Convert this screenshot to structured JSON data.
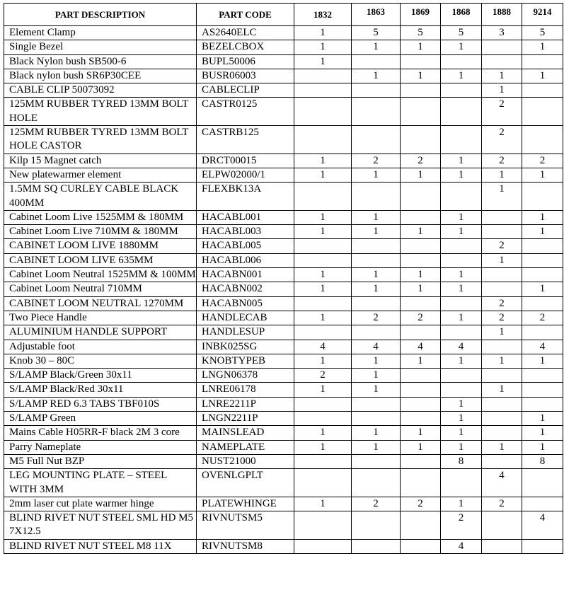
{
  "headers": [
    "PART DESCRIPTION",
    "PART CODE",
    "1832",
    "1863",
    "1869",
    "1868",
    "1888",
    "9214"
  ],
  "rows": [
    {
      "desc": "Element Clamp",
      "code": "AS2640ELC",
      "q": [
        "1",
        "5",
        "5",
        "5",
        "3",
        "5"
      ]
    },
    {
      "desc": "Single Bezel",
      "code": "BEZELCBOX",
      "q": [
        "1",
        "1",
        "1",
        "1",
        "",
        "1"
      ]
    },
    {
      "desc": "Black Nylon bush SB500-6",
      "code": "BUPL50006",
      "q": [
        "1",
        "",
        "",
        "",
        "",
        ""
      ]
    },
    {
      "desc": "Black nylon bush SR6P30CEE",
      "code": "BUSR06003",
      "q": [
        "",
        "1",
        "1",
        "1",
        "1",
        "1"
      ]
    },
    {
      "desc": "CABLE CLIP 50073092",
      "code": "CABLECLIP",
      "q": [
        "",
        "",
        "",
        "",
        "1",
        ""
      ]
    },
    {
      "desc": "125MM RUBBER TYRED 13MM BOLT HOLE",
      "code": "CASTR0125",
      "q": [
        "",
        "",
        "",
        "",
        "2",
        ""
      ]
    },
    {
      "desc": "125MM RUBBER TYRED 13MM BOLT HOLE CASTOR",
      "code": "CASTRB125",
      "q": [
        "",
        "",
        "",
        "",
        "2",
        ""
      ]
    },
    {
      "desc": "Kilp 15 Magnet catch",
      "code": "DRCT00015",
      "q": [
        "1",
        "2",
        "2",
        "1",
        "2",
        "2"
      ]
    },
    {
      "desc": "New platewarmer element",
      "code": "ELPW02000/1",
      "q": [
        "1",
        "1",
        "1",
        "1",
        "1",
        "1"
      ]
    },
    {
      "desc": "1.5MM SQ CURLEY CABLE BLACK 400MM",
      "code": "FLEXBK13A",
      "q": [
        "",
        "",
        "",
        "",
        "1",
        ""
      ]
    },
    {
      "desc": "Cabinet Loom Live 1525MM & 180MM",
      "code": "HACABL001",
      "q": [
        "1",
        "1",
        "",
        "1",
        "",
        "1"
      ]
    },
    {
      "desc": "Cabinet Loom Live 710MM & 180MM",
      "code": "HACABL003",
      "q": [
        "1",
        "1",
        "1",
        "1",
        "",
        "1"
      ]
    },
    {
      "desc": "CABINET LOOM LIVE 1880MM",
      "code": "HACABL005",
      "q": [
        "",
        "",
        "",
        "",
        "2",
        ""
      ]
    },
    {
      "desc": "CABINET LOOM LIVE 635MM",
      "code": "HACABL006",
      "q": [
        "",
        "",
        "",
        "",
        "1",
        ""
      ]
    },
    {
      "desc": "Cabinet Loom Neutral 1525MM & 100MM",
      "code": "HACABN001",
      "q": [
        "1",
        "1",
        "1",
        "1",
        "",
        ""
      ]
    },
    {
      "desc": "Cabinet Loom Neutral 710MM",
      "code": "HACABN002",
      "q": [
        "1",
        "1",
        "1",
        "1",
        "",
        "1"
      ]
    },
    {
      "desc": "CABINET LOOM NEUTRAL 1270MM",
      "code": "HACABN005",
      "q": [
        "",
        "",
        "",
        "",
        "2",
        ""
      ]
    },
    {
      "desc": "Two Piece Handle",
      "code": "HANDLECAB",
      "q": [
        "1",
        "2",
        "2",
        "1",
        "2",
        "2"
      ]
    },
    {
      "desc": "ALUMINIUM HANDLE SUPPORT",
      "code": "HANDLESUP",
      "q": [
        "",
        "",
        "",
        "",
        "1",
        ""
      ]
    },
    {
      "desc": "Adjustable foot",
      "code": "INBK025SG",
      "q": [
        "4",
        "4",
        "4",
        "4",
        "",
        "4"
      ]
    },
    {
      "desc": "Knob 30 – 80C",
      "code": "KNOBTYPEB",
      "q": [
        "1",
        "1",
        "1",
        "1",
        "1",
        "1"
      ]
    },
    {
      "desc": "S/LAMP Black/Green 30x11",
      "code": "LNGN06378",
      "q": [
        "2",
        "1",
        "",
        "",
        "",
        ""
      ]
    },
    {
      "desc": "S/LAMP Black/Red 30x11",
      "code": "LNRE06178",
      "q": [
        "1",
        "1",
        "",
        "",
        "1",
        ""
      ]
    },
    {
      "desc": "S/LAMP RED 6.3 TABS TBF010S",
      "code": "LNRE2211P",
      "q": [
        "",
        "",
        "",
        "1",
        "",
        ""
      ]
    },
    {
      "desc": "S/LAMP Green",
      "code": "LNGN2211P",
      "q": [
        "",
        "",
        "",
        "1",
        "",
        "1"
      ]
    },
    {
      "desc": "Mains Cable H05RR-F black 2M 3 core",
      "code": "MAINSLEAD",
      "q": [
        "1",
        "1",
        "1",
        "1",
        "",
        "1"
      ]
    },
    {
      "desc": "Parry Nameplate",
      "code": "NAMEPLATE",
      "q": [
        "1",
        "1",
        "1",
        "1",
        "1",
        "1"
      ]
    },
    {
      "desc": "M5 Full Nut BZP",
      "code": "NUST21000",
      "q": [
        "",
        "",
        "",
        "8",
        "",
        "8"
      ]
    },
    {
      "desc": "LEG MOUNTING PLATE – STEEL WITH 3MM",
      "code": "OVENLGPLT",
      "q": [
        "",
        "",
        "",
        "",
        "4",
        ""
      ]
    },
    {
      "desc": "2mm laser cut plate warmer hinge",
      "code": "PLATEWHINGE",
      "q": [
        "1",
        "2",
        "2",
        "1",
        "2",
        ""
      ]
    },
    {
      "desc": "BLIND RIVET NUT STEEL SML HD M5 7X12.5",
      "code": "RIVNUTSM5",
      "q": [
        "",
        "",
        "",
        "2",
        "",
        "4"
      ]
    },
    {
      "desc": "BLIND RIVET NUT STEEL M8 11X",
      "code": "RIVNUTSM8",
      "q": [
        "",
        "",
        "",
        "4",
        "",
        ""
      ]
    }
  ]
}
